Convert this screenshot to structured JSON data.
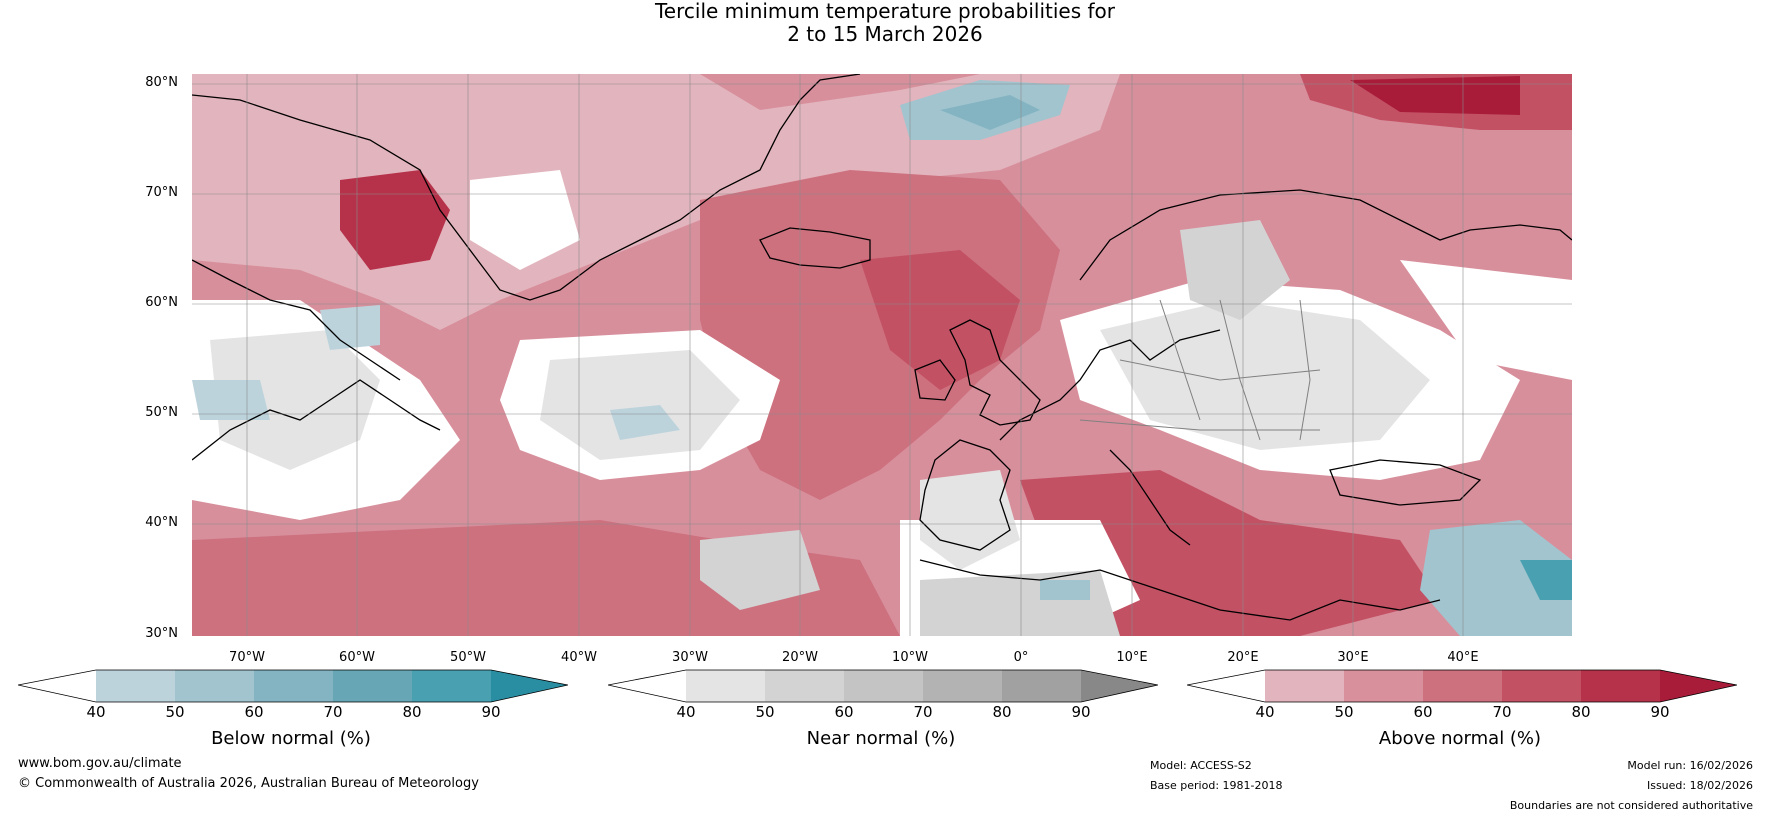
{
  "title_line1": "Tercile minimum temperature probabilities for",
  "title_line2": "2 to 15 March 2026",
  "lat_labels": [
    "80°N",
    "70°N",
    "60°N",
    "50°N",
    "40°N",
    "30°N"
  ],
  "lon_labels": [
    "70°W",
    "60°W",
    "50°W",
    "40°W",
    "30°W",
    "20°W",
    "10°W",
    "0°",
    "10°E",
    "20°E",
    "30°E",
    "40°E"
  ],
  "colorbars": [
    {
      "label": "Below normal (%)",
      "ticks": [
        "40",
        "50",
        "60",
        "70",
        "80",
        "90"
      ],
      "colors": [
        "#ffffff",
        "#bcd3dc",
        "#a1c4cf",
        "#84b4c2",
        "#67a7b5",
        "#48a0b1",
        "#2a8ea2"
      ]
    },
    {
      "label": "Near normal (%)",
      "ticks": [
        "40",
        "50",
        "60",
        "70",
        "80",
        "90"
      ],
      "colors": [
        "#ffffff",
        "#e4e4e4",
        "#d3d3d3",
        "#c4c4c4",
        "#b3b3b3",
        "#a1a1a1",
        "#888888"
      ]
    },
    {
      "label": "Above normal (%)",
      "ticks": [
        "40",
        "50",
        "60",
        "70",
        "80",
        "90"
      ],
      "colors": [
        "#ffffff",
        "#e2b4bd",
        "#d8909d",
        "#cd717f",
        "#c35164",
        "#b6324a",
        "#a81c3a"
      ]
    }
  ],
  "footer": {
    "website": "www.bom.gov.au/climate",
    "copyright": "© Commonwealth of Australia 2026, Australian Bureau of Meteorology",
    "model": "Model: ACCESS-S2",
    "base_period": "Base period: 1981-2018",
    "model_run": "Model run: 16/02/2026",
    "issued": "Issued: 18/02/2026",
    "disclaimer": "Boundaries are not considered authoritative"
  }
}
